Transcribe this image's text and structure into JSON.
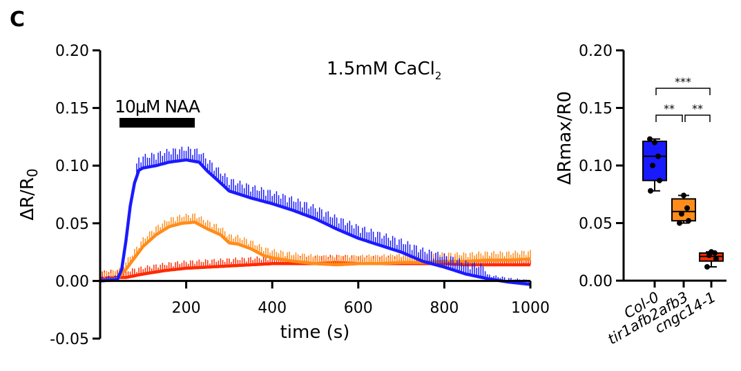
{
  "panel_label": "C",
  "chart_data": [
    {
      "type": "line",
      "title": "",
      "annotation": {
        "text": "1.5mM CaCl",
        "subscript": "2"
      },
      "stimulus": {
        "label": "10µM NAA",
        "start": 45,
        "end": 220
      },
      "xlabel": "time (s)",
      "ylabel_main": "ΔR/R",
      "ylabel_sub": "0",
      "xlim": [
        0,
        1000
      ],
      "ylim": [
        -0.05,
        0.2
      ],
      "xticks": [
        200,
        400,
        600,
        800,
        1000
      ],
      "xtick_labels": [
        "200",
        "400",
        "600",
        "800",
        "1000"
      ],
      "yticks": [
        -0.05,
        0.0,
        0.05,
        0.1,
        0.15,
        0.2
      ],
      "ytick_labels": [
        "-0.05",
        "0.00",
        "0.05",
        "0.10",
        "0.15",
        "0.20"
      ],
      "grid": false,
      "series": [
        {
          "color": "#ff2a00",
          "x": [
            0,
            30,
            60,
            100,
            150,
            200,
            250,
            300,
            350,
            400,
            450,
            500,
            550,
            600,
            650,
            700,
            750,
            800,
            850,
            900,
            950,
            1000
          ],
          "y": [
            0.002,
            0.003,
            0.003,
            0.006,
            0.009,
            0.011,
            0.012,
            0.013,
            0.014,
            0.015,
            0.015,
            0.015,
            0.016,
            0.015,
            0.015,
            0.015,
            0.015,
            0.015,
            0.014,
            0.014,
            0.014,
            0.014
          ]
        },
        {
          "color": "#ff8c1a",
          "x": [
            0,
            40,
            60,
            80,
            100,
            130,
            160,
            190,
            220,
            250,
            280,
            300,
            320,
            350,
            380,
            400,
            450,
            500,
            550,
            600,
            650,
            700,
            750,
            800,
            850,
            900,
            950,
            1000
          ],
          "y": [
            0.0,
            0.002,
            0.01,
            0.02,
            0.03,
            0.04,
            0.047,
            0.05,
            0.051,
            0.045,
            0.04,
            0.033,
            0.032,
            0.028,
            0.022,
            0.02,
            0.017,
            0.015,
            0.014,
            0.015,
            0.015,
            0.016,
            0.016,
            0.017,
            0.017,
            0.018,
            0.018,
            0.019
          ]
        },
        {
          "color": "#1a1aff",
          "x": [
            0,
            40,
            50,
            60,
            70,
            80,
            90,
            100,
            130,
            160,
            200,
            230,
            250,
            280,
            300,
            350,
            400,
            450,
            500,
            550,
            600,
            650,
            700,
            750,
            800,
            850,
            900,
            950,
            1000
          ],
          "y": [
            0.0,
            0.001,
            0.01,
            0.035,
            0.065,
            0.085,
            0.096,
            0.098,
            0.1,
            0.103,
            0.105,
            0.103,
            0.095,
            0.085,
            0.078,
            0.072,
            0.067,
            0.061,
            0.054,
            0.045,
            0.037,
            0.031,
            0.025,
            0.017,
            0.012,
            0.006,
            0.002,
            -0.001,
            -0.003
          ]
        }
      ]
    },
    {
      "type": "box",
      "title": "",
      "ylabel": "ΔRmax/R0",
      "ylim": [
        0.0,
        0.2
      ],
      "yticks": [
        0.0,
        0.05,
        0.1,
        0.15,
        0.2
      ],
      "ytick_labels": [
        "0.00",
        "0.05",
        "0.10",
        "0.15",
        "0.20"
      ],
      "categories": [
        "Col-0",
        "tir1afb2afb3",
        "cngc14-1"
      ],
      "boxes": [
        {
          "color": "#1a1aff",
          "min": 0.078,
          "q1": 0.087,
          "median": 0.108,
          "q3": 0.121,
          "max": 0.123,
          "points": [
            0.078,
            0.087,
            0.1,
            0.108,
            0.12,
            0.123
          ]
        },
        {
          "color": "#ff8c1a",
          "min": 0.05,
          "q1": 0.052,
          "median": 0.06,
          "q3": 0.071,
          "max": 0.074,
          "points": [
            0.05,
            0.052,
            0.058,
            0.063,
            0.074
          ]
        },
        {
          "color": "#ff2a00",
          "min": 0.012,
          "q1": 0.017,
          "median": 0.021,
          "q3": 0.024,
          "max": 0.025,
          "points": [
            0.012,
            0.019,
            0.022,
            0.024,
            0.025
          ]
        }
      ],
      "significance": [
        {
          "from": 0,
          "to": 2,
          "label": "***"
        },
        {
          "from": 0,
          "to": 1,
          "label": "**"
        },
        {
          "from": 1,
          "to": 2,
          "label": "**"
        }
      ]
    }
  ]
}
